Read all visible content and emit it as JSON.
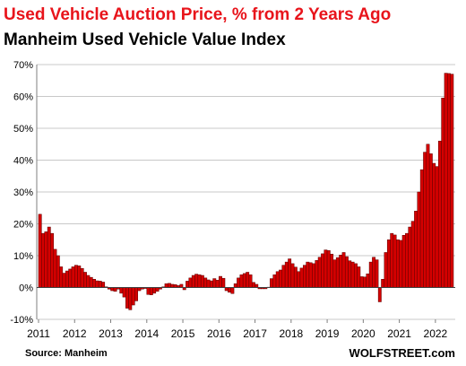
{
  "chart_data": {
    "type": "bar",
    "title": "Used Vehicle Auction Price, % from 2 Years Ago",
    "subtitle": "Manheim Used Vehicle Value Index",
    "source": "Source: Manheim",
    "brand": "WOLFSTREET.com",
    "ylim": [
      -10,
      70
    ],
    "yticks": [
      -10,
      0,
      10,
      20,
      30,
      40,
      50,
      60,
      70
    ],
    "ytick_labels": [
      "-10%",
      "0%",
      "10%",
      "20%",
      "30%",
      "40%",
      "50%",
      "60%",
      "70%"
    ],
    "xtick_labels": [
      "2011",
      "2012",
      "2013",
      "2014",
      "2015",
      "2016",
      "2017",
      "2018",
      "2019",
      "2020",
      "2021",
      "2022"
    ],
    "grid": true,
    "bar_color": "#d40000",
    "bar_edge": "#5a0000",
    "years_range": [
      2011,
      2022
    ],
    "values": [
      23,
      17,
      17.5,
      19,
      17,
      12,
      10,
      6.5,
      4.5,
      5.2,
      5.8,
      6.5,
      7,
      6.8,
      6,
      4.8,
      3.8,
      3.2,
      2.6,
      2.1,
      2,
      1.7,
      0.2,
      -0.5,
      -1,
      -1.2,
      -0.5,
      -1.8,
      -3,
      -6.5,
      -7,
      -5.5,
      -4.2,
      -1,
      -0.5,
      -0.3,
      -2.2,
      -2.3,
      -1.8,
      -1.2,
      -0.5,
      0.2,
      1.2,
      1.3,
      1,
      0.9,
      0.6,
      1,
      -0.7,
      2,
      3,
      3.8,
      4.2,
      4,
      3.8,
      3,
      2.4,
      2.1,
      2.8,
      2.3,
      3.5,
      2.9,
      -1,
      -1.5,
      -1.9,
      1.2,
      3,
      4,
      4.4,
      4.8,
      4,
      1.6,
      1,
      -0.4,
      -0.4,
      -0.4,
      0.1,
      2.8,
      4,
      5,
      5.5,
      7,
      8,
      9,
      7.5,
      6.4,
      5,
      6.1,
      7,
      8,
      7.8,
      7.5,
      8.5,
      9.5,
      10.6,
      11.8,
      11.6,
      10.5,
      8.7,
      9.4,
      10.2,
      11,
      9.7,
      8.4,
      8,
      7.5,
      6.5,
      3.4,
      3.3,
      4.3,
      8,
      9.5,
      8.7,
      -4.5,
      2.6,
      11,
      15,
      17,
      16.5,
      15,
      14.8,
      16.4,
      17,
      19,
      20.8,
      24,
      30,
      37,
      42.5,
      45,
      42,
      39,
      38,
      46,
      59.5,
      67.3,
      67.2,
      67
    ]
  }
}
